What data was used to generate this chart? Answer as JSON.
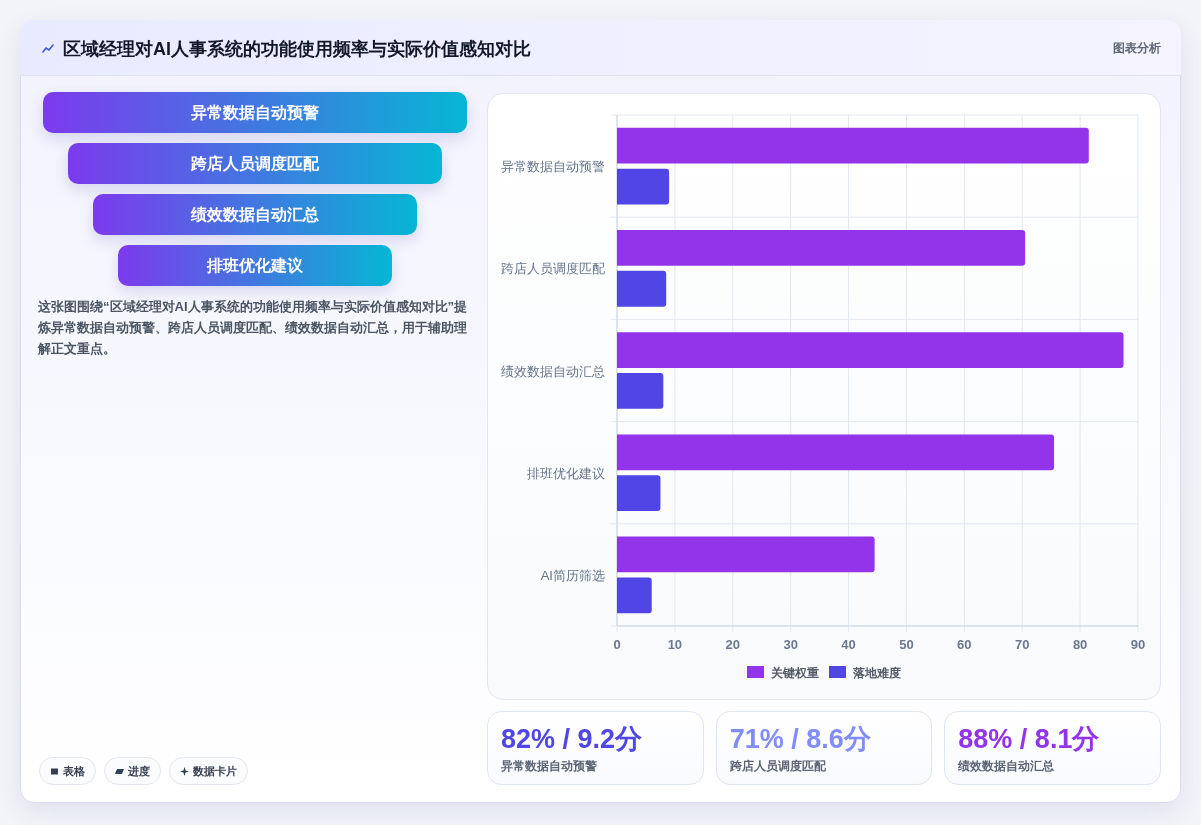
{
  "chart_data": [
    {
      "type": "other",
      "title": "区域经理对AI人事系统的功能使用频率与实际价值感知对比",
      "annotations": [
        "图表分析"
      ]
    },
    {
      "type": "other",
      "categories": [
        "异常数据自动预警",
        "跨店人员调度匹配",
        "绩效数据自动汇总",
        "排班优化建议"
      ],
      "annotations": [
        "这张图围绕“区域经理对AI人事系统的功能使用频率与实际价值感知对比”提炼异常数据自动预警、跨店人员调度匹配、绩效数据自动汇总，用于辅助理解正文重点。",
        "表格",
        "进度",
        "数据卡片"
      ]
    },
    {
      "type": "bar",
      "orientation": "horizontal",
      "categories": [
        "异常数据自动预警",
        "跨店人员调度匹配",
        "绩效数据自动汇总",
        "排班优化建议",
        "AI简历筛选"
      ],
      "series": [
        {
          "name": "关键权重",
          "color": "#9333ea",
          "values": [
            81.5,
            70.5,
            87.5,
            75.5,
            44.5
          ]
        },
        {
          "name": "落地难度",
          "color": "#4f46e5",
          "values": [
            9,
            8.5,
            8,
            7.5,
            6
          ]
        }
      ],
      "xlim": [
        0,
        90
      ],
      "xticks": [
        0,
        10,
        20,
        30,
        40,
        50,
        60,
        70,
        80,
        90
      ],
      "grid": true,
      "legend": "bottom"
    },
    {
      "type": "other",
      "categories": [
        "异常数据自动预警",
        "跨店人员调度匹配",
        "绩效数据自动汇总"
      ],
      "value_labels": [
        "82% / 9.2分",
        "71% / 8.6分",
        "88% / 8.1分"
      ]
    }
  ]
}
